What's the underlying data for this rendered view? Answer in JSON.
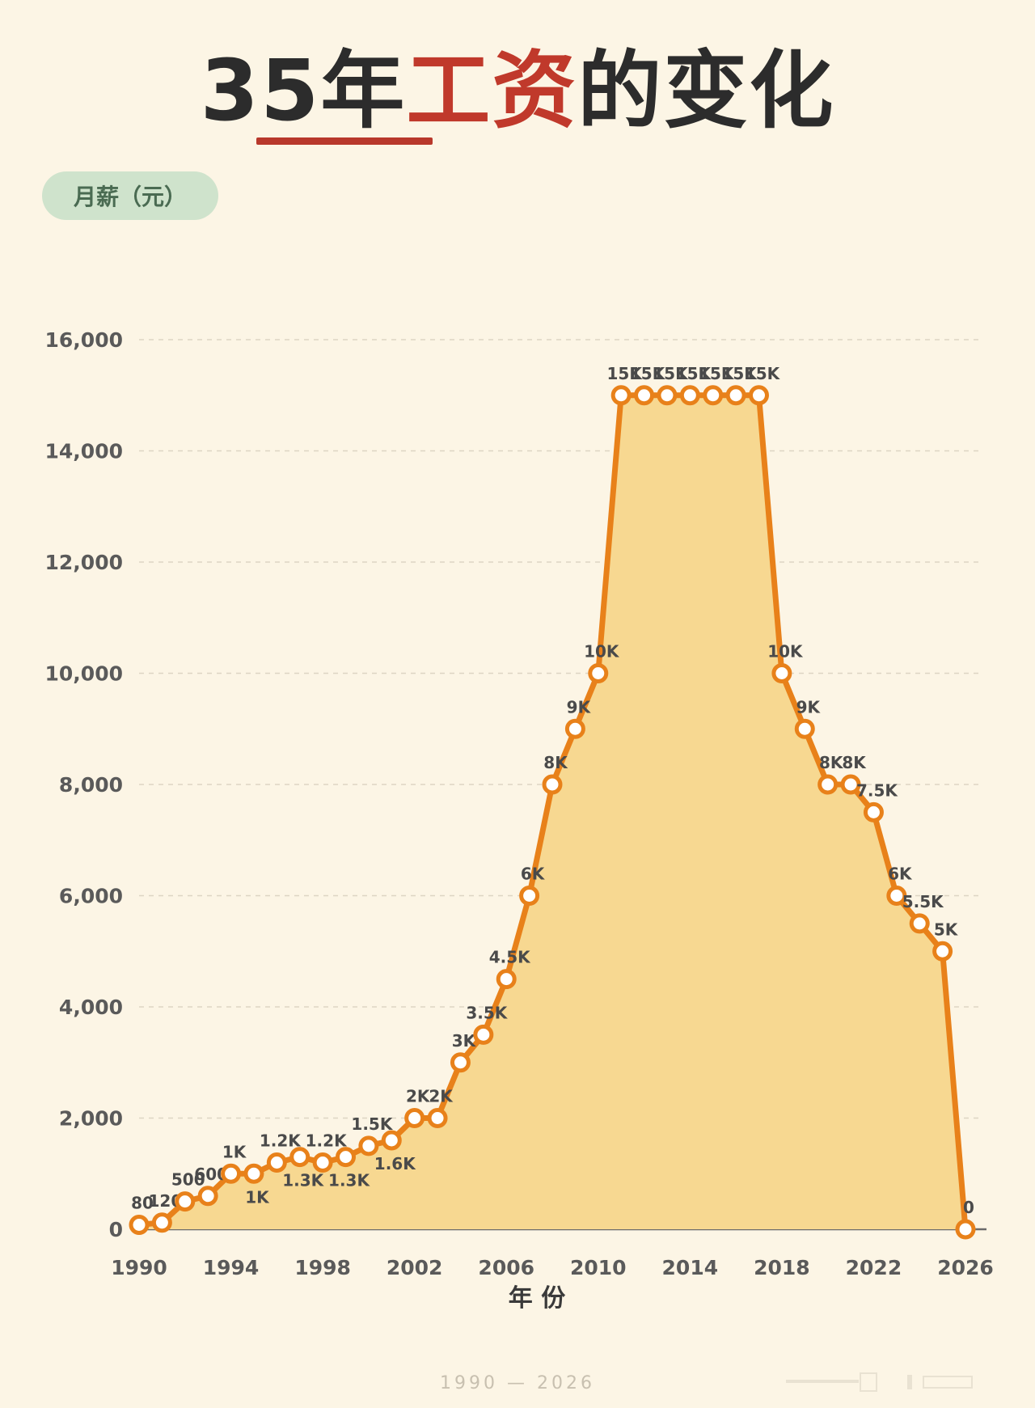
{
  "title": {
    "part1": "35年",
    "part2": "工资",
    "part3": "的变化"
  },
  "footer": {
    "range": "1990 — 2026"
  },
  "colors": {
    "line": "#e8811a",
    "area": "#f7d891",
    "grid": "#ddd5c4",
    "title_accent": "#c0392b",
    "badge_bg": "#cfe3cc"
  },
  "chart_data": {
    "type": "area",
    "ylabel": "月薪（元）",
    "xlabel": "年  份",
    "xlim": [
      1990,
      2026
    ],
    "ylim": [
      0,
      16000
    ],
    "yticks": [
      0,
      2000,
      4000,
      6000,
      8000,
      10000,
      12000,
      14000,
      16000
    ],
    "ytick_labels": [
      "0",
      "2,000",
      "4,000",
      "6,000",
      "8,000",
      "10,000",
      "12,000",
      "14,000",
      "16,000"
    ],
    "xticks": [
      1990,
      1994,
      1998,
      2002,
      2006,
      2010,
      2014,
      2018,
      2022,
      2026
    ],
    "grid": true,
    "points": [
      {
        "x": 1990,
        "y": 80,
        "label": "80",
        "pos": "above"
      },
      {
        "x": 1991,
        "y": 120,
        "label": "120",
        "pos": "above"
      },
      {
        "x": 1992,
        "y": 500,
        "label": "500",
        "pos": "above"
      },
      {
        "x": 1993,
        "y": 600,
        "label": "600",
        "pos": "above"
      },
      {
        "x": 1994,
        "y": 1000,
        "label": "1K",
        "pos": "above"
      },
      {
        "x": 1995,
        "y": 1000,
        "label": "1K",
        "pos": "below"
      },
      {
        "x": 1996,
        "y": 1200,
        "label": "1.2K",
        "pos": "above"
      },
      {
        "x": 1997,
        "y": 1300,
        "label": "1.3K",
        "pos": "below"
      },
      {
        "x": 1998,
        "y": 1200,
        "label": "1.2K",
        "pos": "above"
      },
      {
        "x": 1999,
        "y": 1300,
        "label": "1.3K",
        "pos": "below"
      },
      {
        "x": 2000,
        "y": 1500,
        "label": "1.5K",
        "pos": "above"
      },
      {
        "x": 2001,
        "y": 1600,
        "label": "1.6K",
        "pos": "below"
      },
      {
        "x": 2002,
        "y": 2000,
        "label": "2K",
        "pos": "above"
      },
      {
        "x": 2003,
        "y": 2000,
        "label": "2K",
        "pos": "above"
      },
      {
        "x": 2004,
        "y": 3000,
        "label": "3K",
        "pos": "above"
      },
      {
        "x": 2005,
        "y": 3500,
        "label": "3.5K",
        "pos": "above"
      },
      {
        "x": 2006,
        "y": 4500,
        "label": "4.5K",
        "pos": "above"
      },
      {
        "x": 2007,
        "y": 6000,
        "label": "6K",
        "pos": "above"
      },
      {
        "x": 2008,
        "y": 8000,
        "label": "8K",
        "pos": "above"
      },
      {
        "x": 2009,
        "y": 9000,
        "label": "9K",
        "pos": "above"
      },
      {
        "x": 2010,
        "y": 10000,
        "label": "10K",
        "pos": "above"
      },
      {
        "x": 2011,
        "y": 15000,
        "label": "15K",
        "pos": "above"
      },
      {
        "x": 2012,
        "y": 15000,
        "label": "15K",
        "pos": "above"
      },
      {
        "x": 2013,
        "y": 15000,
        "label": "15K",
        "pos": "above"
      },
      {
        "x": 2014,
        "y": 15000,
        "label": "15K",
        "pos": "above"
      },
      {
        "x": 2015,
        "y": 15000,
        "label": "15K",
        "pos": "above"
      },
      {
        "x": 2016,
        "y": 15000,
        "label": "15K",
        "pos": "above"
      },
      {
        "x": 2017,
        "y": 15000,
        "label": "15K",
        "pos": "above"
      },
      {
        "x": 2018,
        "y": 10000,
        "label": "10K",
        "pos": "above"
      },
      {
        "x": 2019,
        "y": 9000,
        "label": "9K",
        "pos": "above"
      },
      {
        "x": 2020,
        "y": 8000,
        "label": "8K",
        "pos": "above"
      },
      {
        "x": 2021,
        "y": 8000,
        "label": "8K",
        "pos": "above"
      },
      {
        "x": 2022,
        "y": 7500,
        "label": "7.5K",
        "pos": "above"
      },
      {
        "x": 2023,
        "y": 6000,
        "label": "6K",
        "pos": "above"
      },
      {
        "x": 2024,
        "y": 5500,
        "label": "5.5K",
        "pos": "above"
      },
      {
        "x": 2025,
        "y": 5000,
        "label": "5K",
        "pos": "above"
      },
      {
        "x": 2026,
        "y": 0,
        "label": "0",
        "pos": "above"
      }
    ]
  }
}
